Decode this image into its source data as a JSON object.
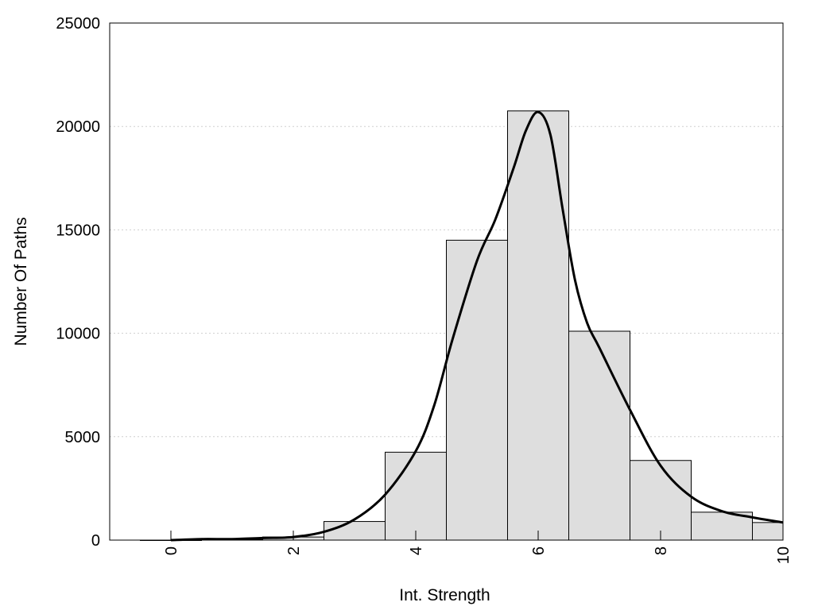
{
  "chart_data": {
    "type": "bar",
    "xlabel": "Int. Strength",
    "ylabel": "Number Of Paths",
    "xlim": [
      -1,
      10
    ],
    "ylim": [
      0,
      25000
    ],
    "x_ticks": [
      {
        "value": 0,
        "label": "0"
      },
      {
        "value": 2,
        "label": "2"
      },
      {
        "value": 4,
        "label": "4"
      },
      {
        "value": 6,
        "label": "6"
      },
      {
        "value": 8,
        "label": "8"
      },
      {
        "value": 10,
        "label": "10"
      }
    ],
    "y_ticks": [
      {
        "value": 0,
        "label": "0"
      },
      {
        "value": 5000,
        "label": "5000"
      },
      {
        "value": 10000,
        "label": "10000"
      },
      {
        "value": 15000,
        "label": "15000"
      },
      {
        "value": 20000,
        "label": "20000"
      },
      {
        "value": 25000,
        "label": "25000"
      }
    ],
    "grid": "horizontal-dotted",
    "bin_width": 1,
    "bins": [
      {
        "center": 0,
        "value": 0
      },
      {
        "center": 1,
        "value": 20
      },
      {
        "center": 2,
        "value": 150
      },
      {
        "center": 3,
        "value": 900
      },
      {
        "center": 4,
        "value": 4250
      },
      {
        "center": 5,
        "value": 14500
      },
      {
        "center": 6,
        "value": 20750
      },
      {
        "center": 7,
        "value": 10100
      },
      {
        "center": 8,
        "value": 3850
      },
      {
        "center": 9,
        "value": 1350
      },
      {
        "center": 10,
        "value": 850
      }
    ],
    "curve": {
      "x": [
        0,
        0.5,
        1,
        1.5,
        2,
        2.5,
        3,
        3.5,
        4,
        4.3,
        4.6,
        5,
        5.3,
        5.6,
        5.8,
        6,
        6.2,
        6.4,
        6.6,
        6.8,
        7,
        7.5,
        8,
        8.5,
        9,
        9.5,
        10
      ],
      "y": [
        0,
        50,
        50,
        100,
        150,
        400,
        1000,
        2200,
        4300,
        6500,
        9700,
        13500,
        15500,
        18000,
        19800,
        20700,
        19600,
        16000,
        12600,
        10500,
        9300,
        6300,
        3600,
        2100,
        1400,
        1100,
        850
      ]
    },
    "colors": {
      "bar_fill": "#dedede",
      "bar_stroke": "#000000",
      "curve": "#000000",
      "grid": "#cfcfcf"
    }
  }
}
